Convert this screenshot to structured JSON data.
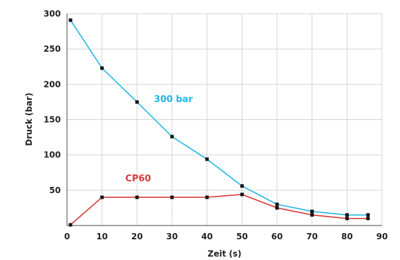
{
  "chart_data": {
    "type": "line",
    "xlabel": "Zeit (s)",
    "ylabel": "Druck (bar)",
    "xlim": [
      0,
      90
    ],
    "ylim": [
      0,
      300
    ],
    "xticks": [
      0,
      10,
      20,
      30,
      40,
      50,
      60,
      70,
      80,
      90
    ],
    "yticks": [
      50,
      100,
      150,
      200,
      250,
      300
    ],
    "grid": true,
    "legend": "inline labels",
    "series": [
      {
        "name": "300 bar",
        "color": "#1fb6e6",
        "x": [
          1,
          10,
          20,
          30,
          40,
          50,
          60,
          70,
          80,
          86
        ],
        "y": [
          291,
          223,
          175,
          126,
          94,
          56,
          30,
          20,
          15,
          15
        ]
      },
      {
        "name": "CP60",
        "color": "#d8393a",
        "x": [
          1,
          10,
          20,
          30,
          40,
          50,
          60,
          70,
          80,
          86
        ],
        "y": [
          1,
          40,
          40,
          40,
          40,
          44,
          25,
          15,
          10,
          10
        ]
      }
    ]
  }
}
